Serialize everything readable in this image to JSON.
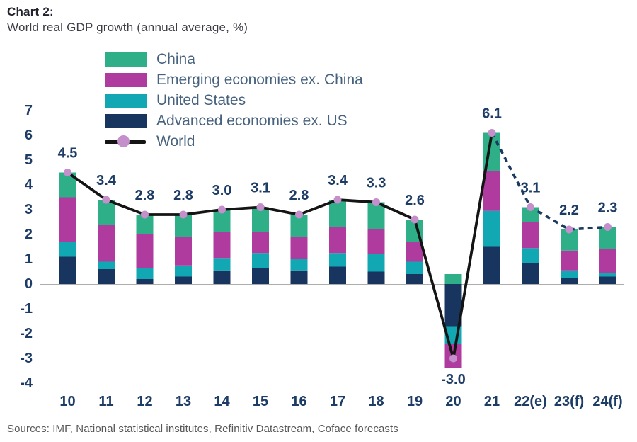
{
  "header": {
    "title": "Chart 2:",
    "subtitle": "World real GDP growth (annual average, %)"
  },
  "footer": {
    "sources": "Sources: IMF, National statistical institutes, Refinitiv Datastream, Coface forecasts"
  },
  "colors": {
    "china": "#2FAF88",
    "emerging_ex_china": "#AE3B9D",
    "united_states": "#12A8B3",
    "advanced_ex_us": "#17355F",
    "world_line": "#141414",
    "world_forecast_line": "#1C3A60",
    "world_marker": "#C48FCB",
    "value_label": "#1D3C66",
    "tick_label": "#1D3C66",
    "legend_text": "#46627E",
    "baseline": "#ADADAD"
  },
  "legend": {
    "items": [
      {
        "label": "China",
        "marker": "swatch",
        "color_key": "china"
      },
      {
        "label": "Emerging economies ex. China",
        "marker": "swatch",
        "color_key": "emerging_ex_china"
      },
      {
        "label": "United States",
        "marker": "swatch",
        "color_key": "united_states"
      },
      {
        "label": "Advanced economies ex. US",
        "marker": "swatch",
        "color_key": "advanced_ex_us"
      },
      {
        "label": "World",
        "marker": "line-dot",
        "color_key": "world_line",
        "dot_color_key": "world_marker"
      }
    ]
  },
  "chart_data": {
    "type": "bar",
    "stacked": true,
    "grid": false,
    "legend_position": "top-left-inside",
    "categories": [
      "10",
      "11",
      "12",
      "13",
      "14",
      "15",
      "16",
      "17",
      "18",
      "19",
      "20",
      "21",
      "22(e)",
      "23(f)",
      "24(f)"
    ],
    "series": [
      {
        "name": "Advanced economies ex. US",
        "color_key": "advanced_ex_us",
        "values": [
          1.1,
          0.6,
          0.2,
          0.3,
          0.55,
          0.65,
          0.55,
          0.7,
          0.5,
          0.4,
          -1.7,
          1.5,
          0.85,
          0.25,
          0.3
        ]
      },
      {
        "name": "United States",
        "color_key": "united_states",
        "values": [
          0.6,
          0.3,
          0.45,
          0.45,
          0.5,
          0.6,
          0.45,
          0.55,
          0.7,
          0.5,
          -0.7,
          1.45,
          0.6,
          0.3,
          0.15
        ]
      },
      {
        "name": "Emerging economies ex. China",
        "color_key": "emerging_ex_china",
        "values": [
          1.8,
          1.5,
          1.35,
          1.15,
          1.05,
          0.85,
          0.9,
          1.05,
          1.0,
          0.8,
          -1.0,
          1.6,
          1.05,
          0.8,
          0.95
        ]
      },
      {
        "name": "China",
        "color_key": "china",
        "values": [
          1.0,
          1.0,
          0.8,
          0.9,
          0.9,
          1.0,
          0.9,
          1.1,
          1.1,
          0.9,
          0.4,
          1.55,
          0.6,
          0.85,
          0.9
        ]
      }
    ],
    "line_series": {
      "name": "World",
      "values": [
        4.5,
        3.4,
        2.8,
        2.8,
        3.0,
        3.1,
        2.8,
        3.4,
        3.3,
        2.6,
        -3.0,
        6.1,
        3.1,
        2.2,
        2.3
      ],
      "labels": [
        "4.5",
        "3.4",
        "2.8",
        "2.8",
        "3.0",
        "3.1",
        "2.8",
        "3.4",
        "3.3",
        "2.6",
        "-3.0",
        "6.1",
        "3.1",
        "2.2",
        "2.3"
      ],
      "solid_through_category": "21",
      "forecast_style": "dashed"
    },
    "yticks": [
      7,
      6,
      5,
      4,
      3,
      2,
      1,
      0,
      -1,
      -2,
      -3,
      -4
    ],
    "ylim": [
      -4,
      7
    ],
    "xlabel": "",
    "ylabel": ""
  }
}
